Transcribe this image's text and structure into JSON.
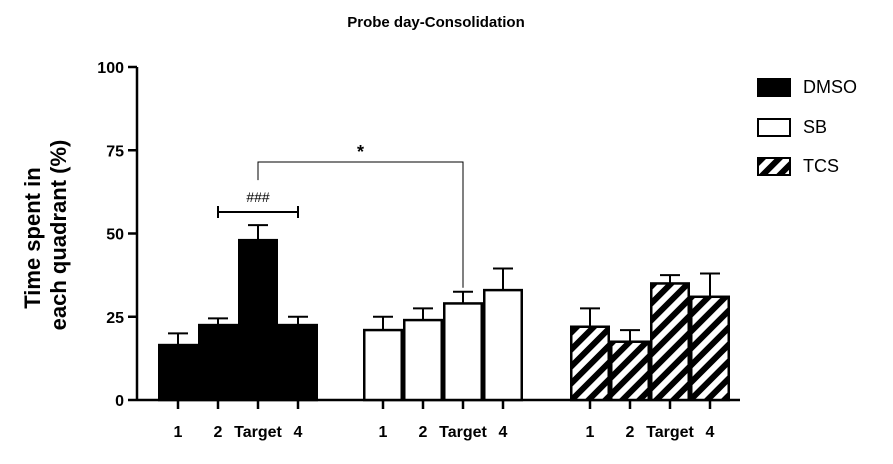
{
  "chart_data": {
    "type": "bar",
    "title": "Probe day-Consolidation",
    "ylabel_lines": [
      "Time spent in",
      "each quadrant (%)"
    ],
    "xlabel": "",
    "ylim": [
      0,
      100
    ],
    "yticks": [
      0,
      25,
      50,
      75,
      100
    ],
    "categories": [
      "1",
      "2",
      "Target",
      "4"
    ],
    "series": [
      {
        "name": "DMSO",
        "fill": "solid",
        "color": "#000000",
        "values": [
          16.5,
          22.5,
          48,
          22.5
        ],
        "errors": [
          3.5,
          2,
          4.5,
          2.5
        ]
      },
      {
        "name": "SB",
        "fill": "open",
        "color": "#ffffff",
        "values": [
          21,
          24,
          29,
          33
        ],
        "errors": [
          4,
          3.5,
          3.5,
          6.5
        ]
      },
      {
        "name": "TCS",
        "fill": "hatched",
        "color": "#000000",
        "values": [
          22,
          17.5,
          35,
          31
        ],
        "errors": [
          5.5,
          3.5,
          2.5,
          7
        ]
      }
    ],
    "annotations": [
      {
        "text": "###",
        "group": "DMSO",
        "from_category": "2",
        "to_category": "4"
      },
      {
        "text": "*",
        "from_series": "DMSO",
        "from_category": "Target",
        "to_series": "SB",
        "to_category": "Target"
      }
    ],
    "legend": {
      "position": "right"
    }
  }
}
